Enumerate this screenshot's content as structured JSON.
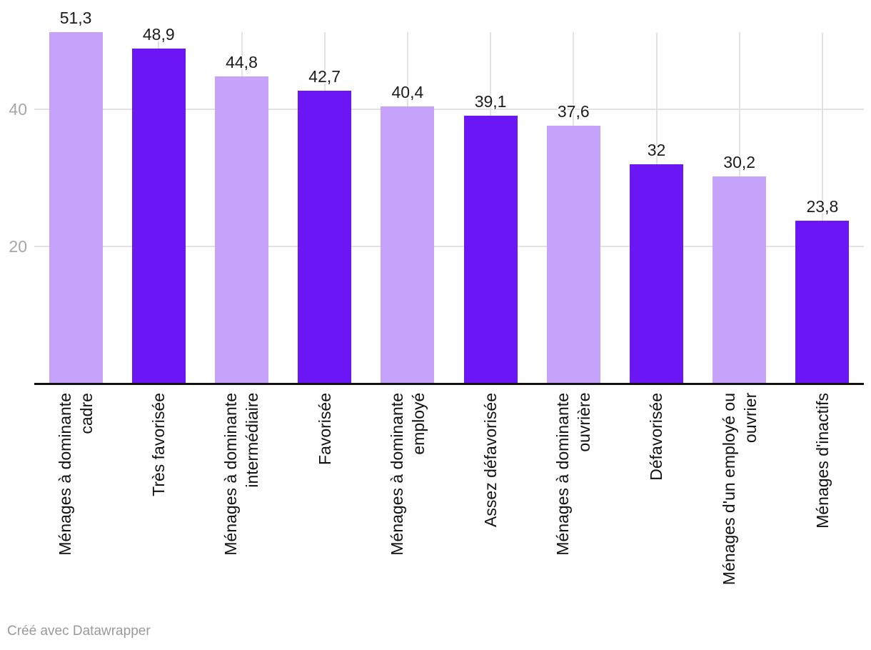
{
  "chart_data": {
    "type": "bar",
    "categories": [
      "Ménages à dominante\ncadre",
      "Très favorisée",
      "Ménages à dominante\nintermédiaire",
      "Favorisée",
      "Ménages à dominante\nemployé",
      "Assez défavorisée",
      "Ménages à dominante\nouvrière",
      "Défavorisée",
      "Ménages d'un employé ou\nouvrier",
      "Ménages d'inactifs"
    ],
    "values": [
      51.3,
      48.9,
      44.8,
      42.7,
      40.4,
      39.1,
      37.6,
      32,
      30.2,
      23.8
    ],
    "value_labels": [
      "51,3",
      "48,9",
      "44,8",
      "42,7",
      "40,4",
      "39,1",
      "37,6",
      "32",
      "30,2",
      "23,8"
    ],
    "bar_colors": [
      "#c5a3fb",
      "#6b17f5",
      "#c5a3fb",
      "#6b17f5",
      "#c5a3fb",
      "#6b17f5",
      "#c5a3fb",
      "#6b17f5",
      "#c5a3fb",
      "#6b17f5"
    ],
    "palette": {
      "light_purple": "#c5a3fb",
      "dark_purple": "#6b17f5"
    },
    "yticks": [
      {
        "value": 20,
        "label": "20"
      },
      {
        "value": 40,
        "label": "40"
      }
    ],
    "ylim": [
      0,
      51.3
    ],
    "grid": true,
    "gridline_color": "#e2e2e2",
    "axis_color": "#111111",
    "value_label_color": "#1c1c1c",
    "category_label_color": "#111111",
    "ytick_color": "#a6a6a6",
    "title": "",
    "xlabel": "",
    "ylabel": "",
    "legend": "none"
  },
  "footer": {
    "credit": "Créé avec Datawrapper",
    "credit_color": "#9a9a9a"
  }
}
